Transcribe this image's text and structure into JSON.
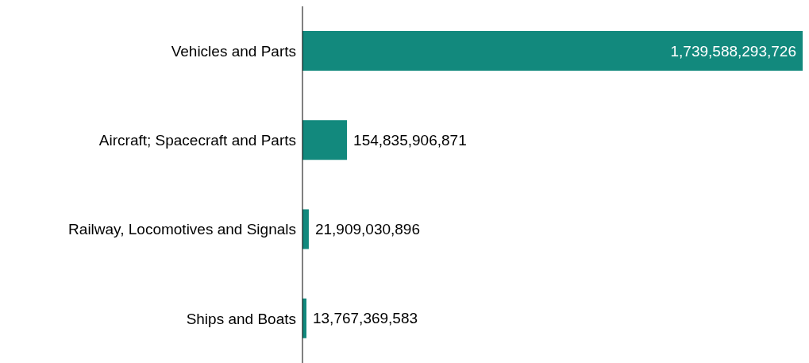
{
  "chart_data": {
    "type": "bar",
    "orientation": "horizontal",
    "categories": [
      "Vehicles and Parts",
      "Aircraft; Spacecraft and Parts",
      "Railway, Locomotives and Signals",
      "Ships and Boats"
    ],
    "values": [
      1739588293726,
      154835906871,
      21909030896,
      13767369583
    ],
    "value_labels": [
      "1,739,588,293,726",
      "154,835,906,871",
      "21,909,030,896",
      "13,767,369,583"
    ],
    "color": "#12897d",
    "tick_labels": "y"
  }
}
